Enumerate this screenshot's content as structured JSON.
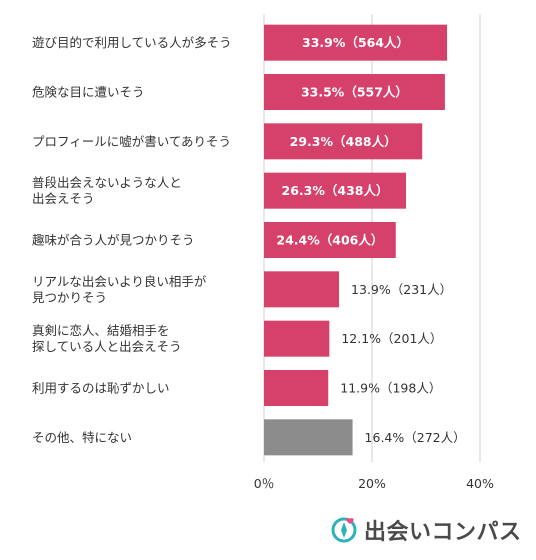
{
  "chart_data": {
    "type": "bar",
    "orientation": "horizontal",
    "categories": [
      [
        "遊び目的で利用している人が多そう"
      ],
      [
        "危険な目に遭いそう"
      ],
      [
        "プロフィールに嘘が書いてありそう"
      ],
      [
        "普段出会えないような人と",
        "出会えそう"
      ],
      [
        "趣味が合う人が見つかりそう"
      ],
      [
        "リアルな出会いより良い相手が",
        "見つかりそう"
      ],
      [
        "真剣に恋人、結婚相手を",
        "探している人と出会えそう"
      ],
      [
        "利用するのは恥ずかしい"
      ],
      [
        "その他、特にない"
      ]
    ],
    "values": [
      33.9,
      33.5,
      29.3,
      26.3,
      24.4,
      13.9,
      12.1,
      11.9,
      16.4
    ],
    "value_labels": [
      "33.9%（564人）",
      "33.5%（557人）",
      "29.3%（488人）",
      "26.3%（438人）",
      "24.4%（406人）",
      "13.9%（231人）",
      "12.1%（201人）",
      "11.9%（198人）",
      "16.4%（272人）"
    ],
    "bar_colors": [
      "#d6416b",
      "#d6416b",
      "#d6416b",
      "#d6416b",
      "#d6416b",
      "#d6416b",
      "#d6416b",
      "#d6416b",
      "#8c8c8c"
    ],
    "xlim": [
      0,
      40
    ],
    "ticks": [
      0,
      20,
      40
    ],
    "tick_labels": [
      "0％",
      "20%",
      "40%"
    ],
    "grid": true,
    "label_inside_threshold": 20
  },
  "logo": {
    "text": "出会いコンパス",
    "primary_color": "#2bb3b9",
    "accent_color": "#e94c7c",
    "icon": "compass-heart-icon"
  }
}
